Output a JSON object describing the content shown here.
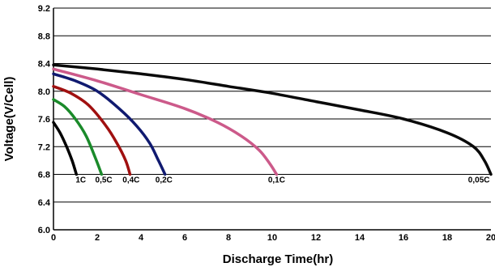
{
  "chart_data": {
    "type": "line",
    "title": "",
    "xlabel": "Discharge Time(hr)",
    "ylabel": "Voltage(V/Cell)",
    "xlim": [
      0,
      20
    ],
    "ylim": [
      6.0,
      9.2
    ],
    "x_ticks": [
      "0",
      "2",
      "4",
      "6",
      "8",
      "10",
      "12",
      "14",
      "16",
      "18",
      "20"
    ],
    "y_ticks": [
      "6.0",
      "6.4",
      "6.8",
      "7.2",
      "7.6",
      "8.0",
      "8.4",
      "8.8",
      "9.2"
    ],
    "grid": "horizontal",
    "series": [
      {
        "name": "1C",
        "color": "#000000",
        "x": [
          0,
          0.3,
          0.6,
          0.85,
          1.05
        ],
        "y": [
          7.55,
          7.4,
          7.2,
          7.0,
          6.8
        ]
      },
      {
        "name": "0.5C",
        "color": "#1a8a2a",
        "x": [
          0,
          0.5,
          1.0,
          1.5,
          1.9,
          2.2
        ],
        "y": [
          7.88,
          7.78,
          7.6,
          7.35,
          7.05,
          6.8
        ]
      },
      {
        "name": "0.4C",
        "color": "#a01010",
        "x": [
          0,
          0.8,
          1.6,
          2.4,
          2.9,
          3.3,
          3.5
        ],
        "y": [
          8.07,
          7.97,
          7.8,
          7.5,
          7.25,
          7.0,
          6.8
        ]
      },
      {
        "name": "0.2C",
        "color": "#101a70",
        "x": [
          0,
          1,
          2,
          3,
          3.8,
          4.4,
          4.8,
          5.1
        ],
        "y": [
          8.25,
          8.15,
          8.0,
          7.75,
          7.5,
          7.25,
          7.0,
          6.8
        ]
      },
      {
        "name": "0.1C",
        "color": "#cc5a8a",
        "x": [
          0,
          2,
          4,
          6,
          7.5,
          8.6,
          9.4,
          9.9,
          10.2
        ],
        "y": [
          8.32,
          8.15,
          7.95,
          7.75,
          7.55,
          7.35,
          7.15,
          6.95,
          6.8
        ]
      },
      {
        "name": "0.05C",
        "color": "#0a0a0a",
        "x": [
          0,
          2,
          4,
          6,
          8,
          10,
          12,
          14,
          16,
          18,
          19.2,
          19.7,
          20
        ],
        "y": [
          8.38,
          8.32,
          8.25,
          8.17,
          8.07,
          7.97,
          7.85,
          7.73,
          7.6,
          7.4,
          7.2,
          7.0,
          6.8
        ]
      }
    ],
    "curve_labels": [
      {
        "text": "1C",
        "x": 1.25,
        "y": 6.73
      },
      {
        "text": "0,5C",
        "x": 2.3,
        "y": 6.73
      },
      {
        "text": "0,4C",
        "x": 3.55,
        "y": 6.73
      },
      {
        "text": "0,2C",
        "x": 5.05,
        "y": 6.73
      },
      {
        "text": "0,1C",
        "x": 10.2,
        "y": 6.73
      },
      {
        "text": "0,05C",
        "x": 19.45,
        "y": 6.73
      }
    ]
  }
}
